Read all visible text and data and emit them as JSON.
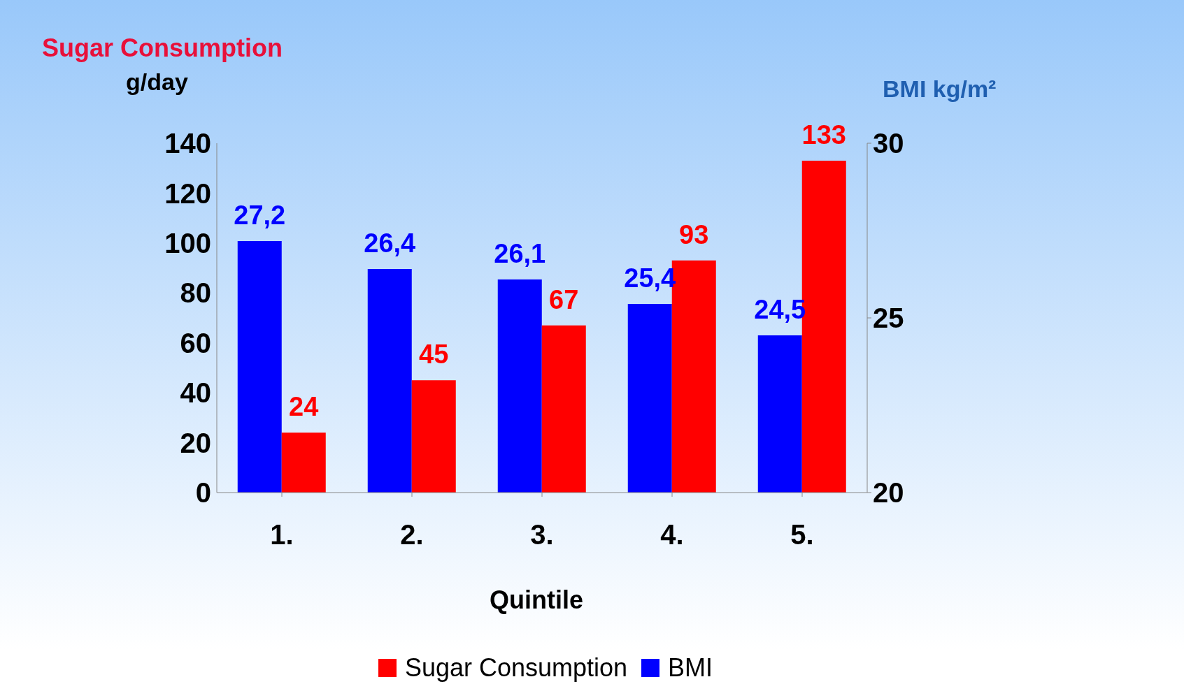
{
  "chart_data": {
    "type": "bar",
    "title": "Sugar Consumption",
    "ylabel": "g/day",
    "y2label": "BMI kg/m²",
    "xlabel": "Quintile",
    "categories": [
      "1.",
      "2.",
      "3.",
      "4.",
      "5."
    ],
    "series": [
      {
        "name": "Sugar Consumption",
        "color": "#ff0000",
        "values": [
          24,
          45,
          67,
          93,
          133
        ],
        "value_labels": [
          "24",
          "45",
          "67",
          "93",
          "133"
        ]
      },
      {
        "name": "BMI",
        "color": "#0000ff",
        "axis": "y2",
        "values": [
          27.2,
          26.4,
          26.1,
          25.4,
          24.5
        ],
        "value_labels": [
          "27,2",
          "26,4",
          "26,1",
          "25,4",
          "24,5"
        ]
      }
    ],
    "ylim": [
      0,
      140
    ],
    "yticks": [
      0,
      20,
      40,
      60,
      80,
      100,
      120,
      140
    ],
    "y2lim": [
      20,
      30
    ],
    "y2ticks": [
      20,
      25,
      30
    ],
    "legend": "bottom",
    "grid": false
  }
}
